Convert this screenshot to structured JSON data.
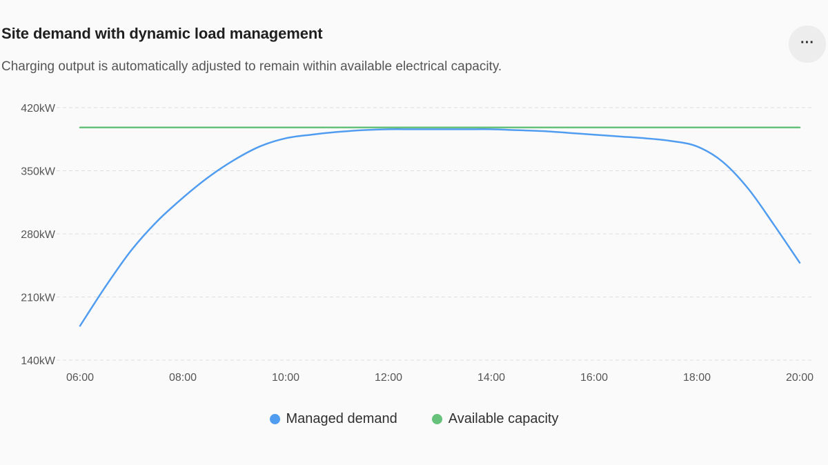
{
  "header": {
    "title": "Site demand with dynamic load management",
    "subtitle": "Charging output is automatically adjusted to remain within available electrical capacity.",
    "more_label": "···"
  },
  "colors": {
    "managed_demand": "#4f9cf0",
    "available_capacity": "#66c27a",
    "grid": "#dddddd",
    "axis_text": "#555555"
  },
  "chart_data": {
    "type": "line",
    "title": "Site demand with dynamic load management",
    "xlabel": "",
    "ylabel": "",
    "x": [
      "06:00",
      "06:30",
      "07:00",
      "07:30",
      "08:00",
      "08:30",
      "09:00",
      "09:30",
      "10:00",
      "10:30",
      "11:00",
      "11:30",
      "12:00",
      "12:30",
      "13:00",
      "13:30",
      "14:00",
      "14:30",
      "15:00",
      "15:30",
      "16:00",
      "16:30",
      "17:00",
      "17:30",
      "18:00",
      "18:30",
      "19:00",
      "19:30",
      "20:00"
    ],
    "x_tick_labels": [
      "06:00",
      "08:00",
      "10:00",
      "12:00",
      "14:00",
      "16:00",
      "18:00",
      "20:00"
    ],
    "y_tick_labels": [
      "420kW",
      "350kW",
      "280kW",
      "210kW",
      "140kW"
    ],
    "y_ticks": [
      420,
      350,
      280,
      210,
      140
    ],
    "ylim": [
      140,
      420
    ],
    "grid": true,
    "legend_position": "bottom-center",
    "series": [
      {
        "name": "Managed demand",
        "color": "#4f9cf0",
        "values": [
          178,
          222,
          262,
          294,
          320,
          343,
          362,
          377,
          386,
          390,
          393,
          395,
          396,
          396,
          396,
          396,
          396,
          395,
          394,
          392,
          390,
          388,
          386,
          383,
          377,
          360,
          330,
          290,
          248
        ]
      },
      {
        "name": "Available capacity",
        "color": "#66c27a",
        "values": [
          398,
          398,
          398,
          398,
          398,
          398,
          398,
          398,
          398,
          398,
          398,
          398,
          398,
          398,
          398,
          398,
          398,
          398,
          398,
          398,
          398,
          398,
          398,
          398,
          398,
          398,
          398,
          398,
          398
        ]
      }
    ]
  }
}
